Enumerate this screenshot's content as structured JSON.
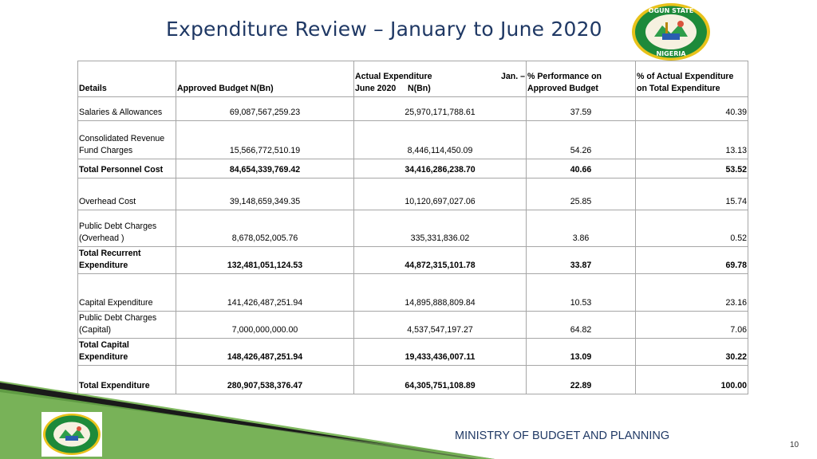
{
  "title": "Expenditure Review – January to June 2020",
  "logo": {
    "text_top": "OGUN STATE",
    "text_bottom": "NIGERIA"
  },
  "headers": {
    "details": "Details",
    "approved": "Approved Budget N(Bn)",
    "actual_line1_a": "Actual Expenditure",
    "actual_line1_b": "Jan. –",
    "actual_line2": "June 2020     N(Bn)",
    "perf_line1": "% Performance on",
    "perf_line2": "Approved Budget",
    "share_line1": "% of Actual Expenditure",
    "share_line2": "on Total Expenditure"
  },
  "rows": [
    {
      "details": "Salaries & Allowances",
      "approved": "69,087,567,259.23",
      "actual": "25,970,171,788.61",
      "performance": "37.59",
      "share": "40.39"
    },
    {
      "details": "Consolidated Revenue Fund Charges",
      "approved": "15,566,772,510.19",
      "actual": "8,446,114,450.09",
      "performance": "54.26",
      "share": "13.13"
    },
    {
      "details": "Total Personnel Cost",
      "approved": "84,654,339,769.42",
      "actual": "34,416,286,238.70",
      "performance": "40.66",
      "share": "53.52"
    },
    {
      "details": "Overhead Cost",
      "approved": "39,148,659,349.35",
      "actual": "10,120,697,027.06",
      "performance": "25.85",
      "share": "15.74"
    },
    {
      "details": "Public Debt Charges (Overhead )",
      "approved": "8,678,052,005.76",
      "actual": "335,331,836.02",
      "performance": "3.86",
      "share": "0.52"
    },
    {
      "details": "Total Recurrent Expenditure",
      "approved": "132,481,051,124.53",
      "actual": "44,872,315,101.78",
      "performance": "33.87",
      "share": "69.78"
    },
    {
      "details": "Capital Expenditure",
      "approved": "141,426,487,251.94",
      "actual": "14,895,888,809.84",
      "performance": "10.53",
      "share": "23.16"
    },
    {
      "details": "Public Debt Charges (Capital)",
      "approved": "7,000,000,000.00",
      "actual": "4,537,547,197.27",
      "performance": "64.82",
      "share": "7.06"
    },
    {
      "details": "Total Capital Expenditure",
      "approved": "148,426,487,251.94",
      "actual": "19,433,436,007.11",
      "performance": "13.09",
      "share": "30.22"
    },
    {
      "details": "Total Expenditure",
      "approved": "280,907,538,376.47",
      "actual": "64,305,751,108.89",
      "performance": "22.89",
      "share": "100.00"
    }
  ],
  "footer": {
    "ministry": "MINISTRY OF BUDGET AND PLANNING",
    "page_number": "10"
  },
  "colors": {
    "title": "#1f3864",
    "stripe_dark": "#1a1a1a",
    "stripe_green": "#6aa84f",
    "border": "#a6a6a6"
  }
}
